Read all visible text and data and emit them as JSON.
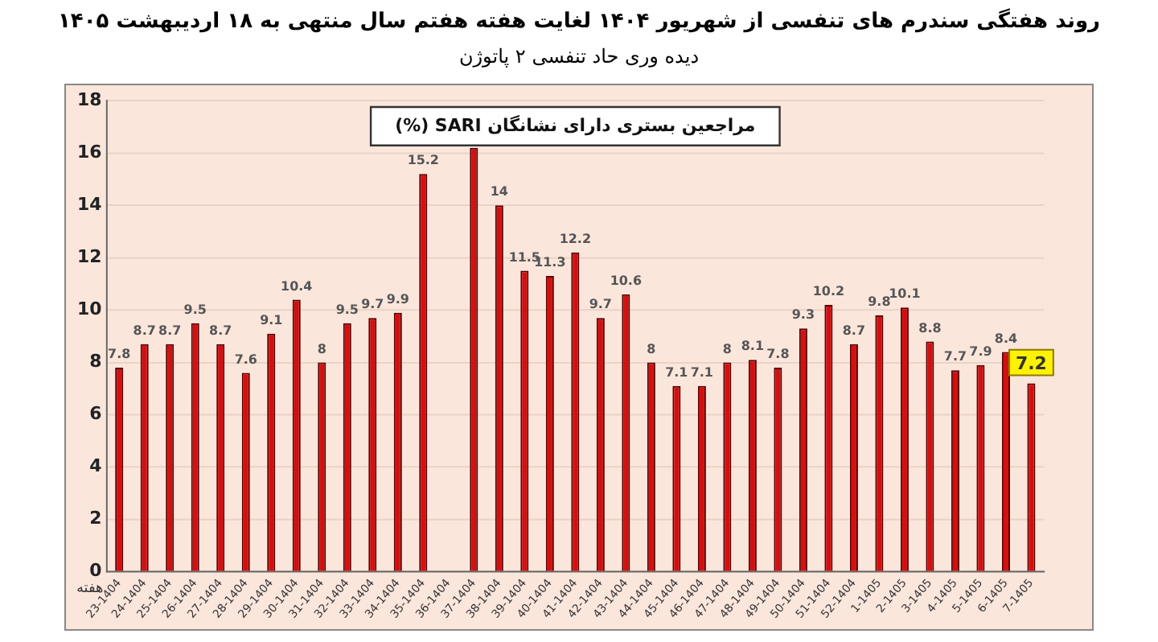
{
  "chart_data": {
    "type": "bar",
    "title": "روند هفتگی سندرم های تنفسی از شهریور ۱۴۰۴ لغایت هفته هفتم سال منتهی به ۱۸ اردیبهشت ۱۴۰۵",
    "subtitle": "دیده وری حاد تنفسی ۲ پاتوژن",
    "xlabel": "هفته",
    "annotations": [
      "مراجعین بستری دارای نشانگان SARI (%)"
    ],
    "categories": [
      "23-1404",
      "24-1404",
      "25-1404",
      "26-1404",
      "27-1404",
      "28-1404",
      "29-1404",
      "30-1404",
      "31-1404",
      "32-1404",
      "33-1404",
      "34-1404",
      "35-1404",
      "36-1404",
      "37-1404",
      "38-1404",
      "39-1404",
      "40-1404",
      "41-1404",
      "42-1404",
      "43-1404",
      "44-1404",
      "45-1404",
      "46-1404",
      "47-1404",
      "48-1404",
      "49-1404",
      "50-1404",
      "51-1404",
      "52-1404",
      "1-1405",
      "2-1405",
      "3-1405",
      "4-1405",
      "5-1405",
      "6-1405",
      "7-1405"
    ],
    "values": [
      7.8,
      8.7,
      8.7,
      9.5,
      8.7,
      7.6,
      9.1,
      10.4,
      8,
      9.5,
      9.7,
      9.9,
      15.2,
      null,
      16.2,
      14,
      11.5,
      11.3,
      12.2,
      9.7,
      10.6,
      8,
      7.1,
      7.1,
      8,
      8.1,
      7.8,
      9.3,
      10.2,
      8.7,
      9.8,
      10.1,
      8.8,
      7.7,
      7.9,
      8.4,
      7.2
    ],
    "value_labels": [
      "7.8",
      "8.7",
      "8.7",
      "9.5",
      "8.7",
      "7.6",
      "9.1",
      "10.4",
      "8",
      "9.5",
      "9.7",
      "9.9",
      "15.2",
      null,
      null,
      "14",
      "11.5",
      "11.3",
      "12.2",
      "9.7",
      "10.6",
      "8",
      "7.1",
      "7.1",
      "8",
      "8.1",
      "7.8",
      "9.3",
      "10.2",
      "8.7",
      "9.8",
      "10.1",
      "8.8",
      "7.7",
      "7.9",
      "8.4",
      "7.2"
    ],
    "color": "#d40f0f",
    "ylim": [
      0,
      18
    ],
    "yticks": [
      0,
      2,
      4,
      6,
      8,
      10,
      12,
      14,
      16,
      18
    ],
    "grid": "y",
    "legend": false
  }
}
